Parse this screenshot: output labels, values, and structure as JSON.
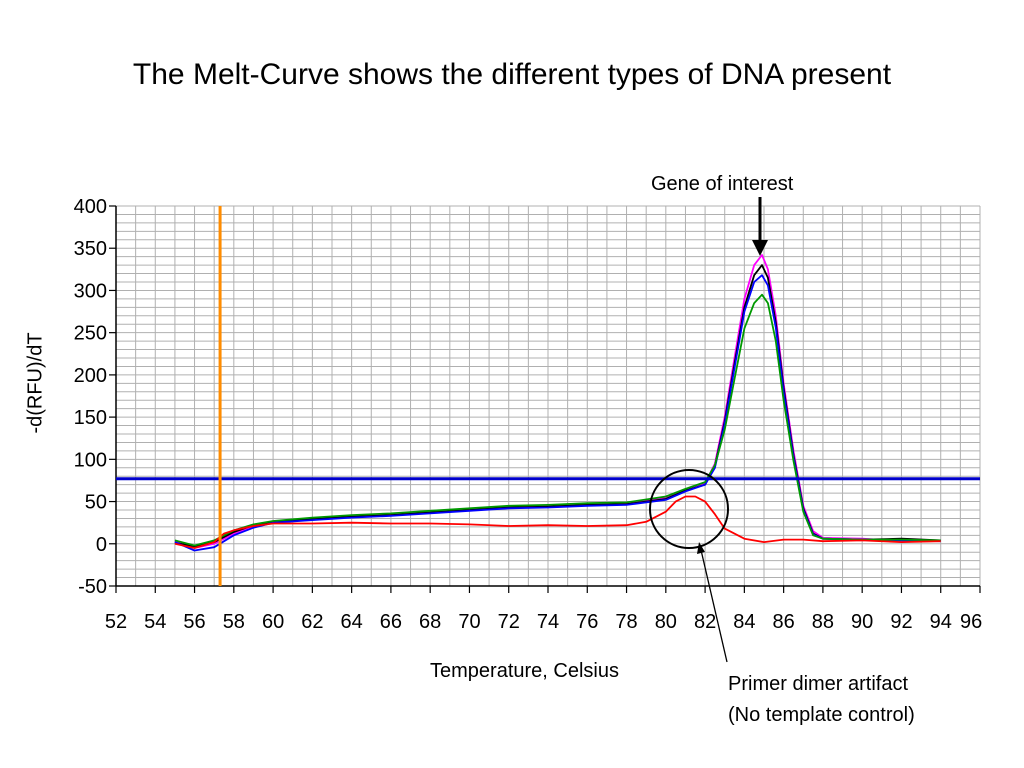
{
  "slide": {
    "title": "The Melt-Curve shows the different types of DNA present"
  },
  "annotations": {
    "gene_of_interest": "Gene of interest",
    "primer_dimer_line1": "Primer dimer artifact",
    "primer_dimer_line2": "(No template control)"
  },
  "chart_data": {
    "type": "line",
    "title": "",
    "xlabel": "Temperature, Celsius",
    "ylabel": "-d(RFU)/dT",
    "xlim": [
      52,
      96
    ],
    "ylim": [
      -50,
      400
    ],
    "x_ticks": [
      52,
      54,
      56,
      58,
      60,
      62,
      64,
      66,
      68,
      70,
      72,
      74,
      76,
      78,
      80,
      82,
      84,
      86,
      88,
      90,
      92,
      94,
      96
    ],
    "x_tick_labels": [
      "52",
      "54",
      "56",
      "58",
      "60",
      "62",
      "64",
      "66",
      "68",
      "70",
      "72",
      "74",
      "76",
      "78",
      "80",
      "82",
      "84",
      "86",
      "88",
      "90",
      "92",
      "94",
      "96"
    ],
    "y_ticks": [
      -50,
      0,
      50,
      100,
      150,
      200,
      250,
      300,
      350,
      400
    ],
    "y_tick_labels": [
      "-50",
      "0",
      "50",
      "100",
      "150",
      "200",
      "250",
      "300",
      "350",
      "400"
    ],
    "grid": true,
    "threshold_y": 77,
    "threshold_color": "#0000cc",
    "vertical_marker_x": 57.3,
    "vertical_marker_color": "#ff8c00",
    "series": [
      {
        "color": "#ff00ff",
        "x": [
          55,
          56,
          57,
          58,
          59,
          60,
          62,
          64,
          66,
          68,
          70,
          72,
          74,
          76,
          78,
          80,
          81,
          82,
          82.5,
          83,
          83.5,
          84,
          84.5,
          84.9,
          85.2,
          85.6,
          86,
          86.5,
          87,
          87.5,
          88,
          90,
          92,
          94
        ],
        "y": [
          3,
          -5,
          0,
          12,
          20,
          26,
          30,
          33,
          35,
          38,
          41,
          44,
          45,
          47,
          48,
          55,
          64,
          72,
          95,
          150,
          220,
          290,
          330,
          342,
          325,
          270,
          190,
          110,
          45,
          15,
          7,
          6,
          3,
          4
        ]
      },
      {
        "color": "#000000",
        "x": [
          55,
          56,
          57,
          58,
          59,
          60,
          62,
          64,
          66,
          68,
          70,
          72,
          74,
          76,
          78,
          80,
          81,
          82,
          82.5,
          83,
          83.5,
          84,
          84.5,
          84.9,
          85.2,
          85.6,
          86,
          86.5,
          87,
          87.5,
          88,
          90,
          92,
          94
        ],
        "y": [
          1,
          -3,
          2,
          14,
          22,
          26,
          29,
          32,
          34,
          37,
          40,
          43,
          44,
          46,
          47,
          53,
          63,
          70,
          92,
          145,
          213,
          280,
          318,
          330,
          315,
          262,
          185,
          105,
          42,
          12,
          6,
          5,
          6,
          4
        ]
      },
      {
        "color": "#0000ff",
        "x": [
          55,
          56,
          57,
          58,
          59,
          60,
          62,
          64,
          66,
          68,
          70,
          72,
          74,
          76,
          78,
          80,
          81,
          82,
          82.5,
          83,
          83.5,
          84,
          84.5,
          84.9,
          85.2,
          85.6,
          86,
          86.5,
          87,
          87.5,
          88,
          90,
          92,
          94
        ],
        "y": [
          2,
          -8,
          -4,
          10,
          19,
          25,
          28,
          31,
          33,
          36,
          39,
          42,
          43,
          45,
          46,
          52,
          62,
          70,
          90,
          142,
          208,
          275,
          310,
          318,
          306,
          256,
          180,
          102,
          40,
          11,
          6,
          5,
          4,
          3
        ]
      },
      {
        "color": "#009900",
        "x": [
          55,
          56,
          57,
          58,
          59,
          60,
          62,
          64,
          66,
          68,
          70,
          72,
          74,
          76,
          78,
          80,
          81,
          82,
          82.5,
          83,
          83.5,
          84,
          84.5,
          84.9,
          85.2,
          85.6,
          86,
          86.5,
          87,
          87.5,
          88,
          90,
          92,
          94
        ],
        "y": [
          4,
          -2,
          4,
          16,
          23,
          27,
          31,
          34,
          36,
          39,
          42,
          45,
          46,
          48,
          49,
          56,
          65,
          73,
          93,
          135,
          195,
          255,
          285,
          295,
          285,
          240,
          170,
          98,
          38,
          10,
          6,
          5,
          5,
          4
        ]
      },
      {
        "color": "#ff0000",
        "x": [
          55,
          56,
          57,
          57.5,
          58,
          59,
          60,
          62,
          64,
          66,
          68,
          70,
          72,
          74,
          76,
          78,
          79,
          80,
          80.5,
          81,
          81.5,
          82,
          82.5,
          83,
          84,
          85,
          86,
          87,
          88,
          90,
          92,
          94
        ],
        "y": [
          0,
          -5,
          2,
          12,
          16,
          21,
          24,
          24,
          25,
          24,
          24,
          23,
          21,
          22,
          21,
          22,
          26,
          38,
          50,
          56,
          56,
          50,
          35,
          18,
          6,
          2,
          5,
          5,
          3,
          4,
          2,
          3
        ]
      }
    ]
  }
}
